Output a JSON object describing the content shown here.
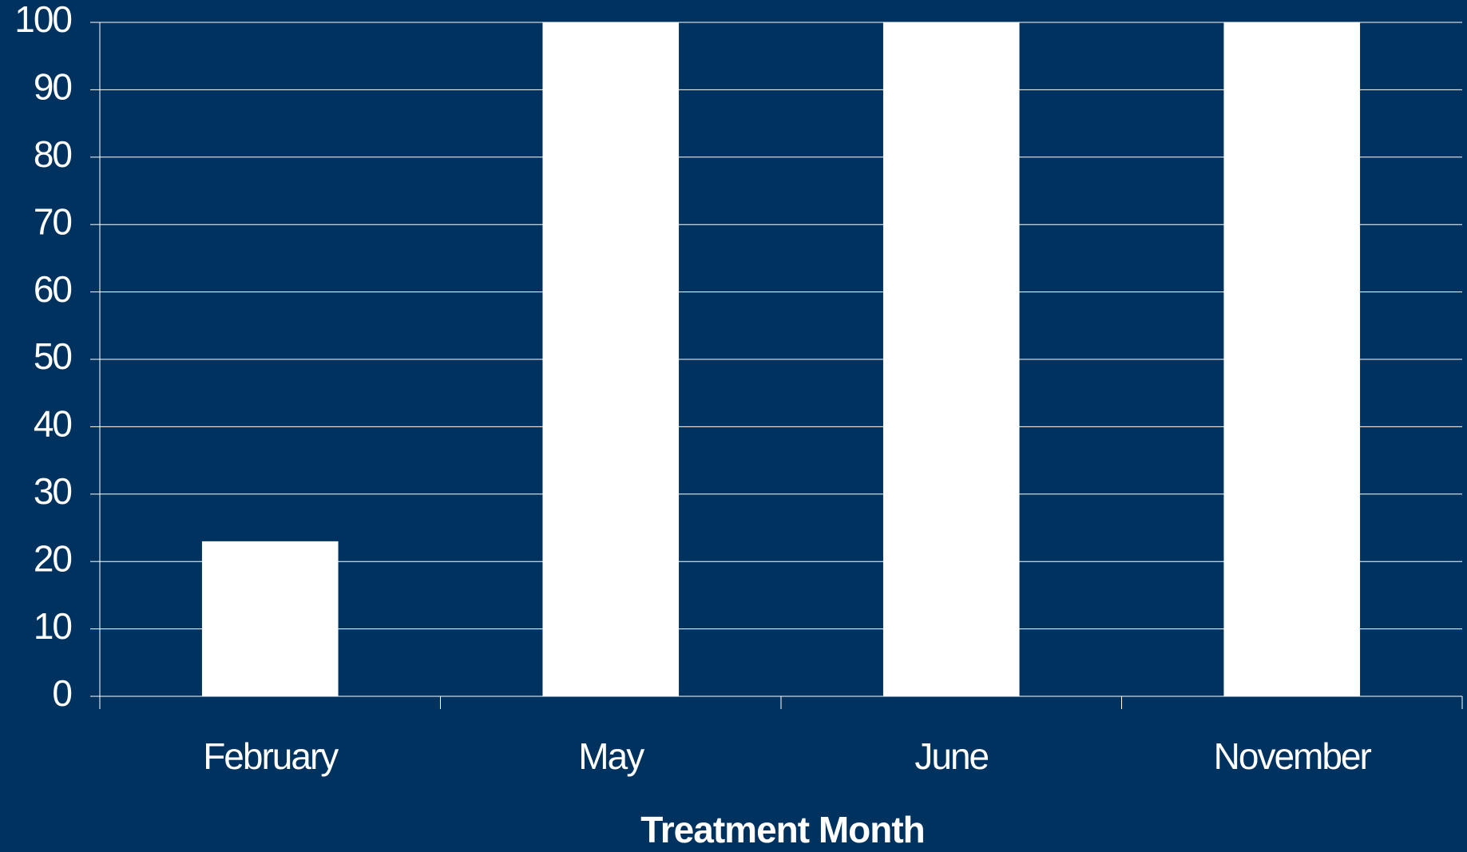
{
  "chart_data": {
    "type": "bar",
    "x_label": "Treatment Month",
    "categories": [
      "February",
      "May",
      "June",
      "November"
    ],
    "values": [
      23,
      100,
      100,
      100
    ],
    "color": "#ffffff",
    "ylim": [
      0,
      100
    ],
    "yticks": [
      0,
      10,
      20,
      30,
      40,
      50,
      60,
      70,
      80,
      90,
      100
    ],
    "grid": true
  }
}
